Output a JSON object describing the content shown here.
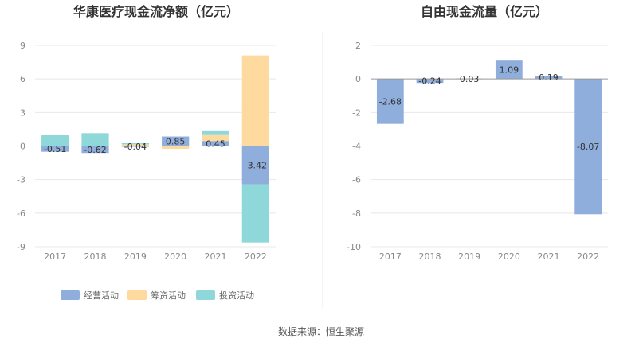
{
  "colors": {
    "operating": "#8FAEDB",
    "financing": "#FFDA9E",
    "investing": "#8ED8DA",
    "grid": "#E8E8E8",
    "axis": "#999999"
  },
  "source_label": "数据来源：恒生聚源",
  "chart_data": [
    {
      "type": "bar",
      "title": "华康医疗现金流净额（亿元）",
      "categories": [
        "2017",
        "2018",
        "2019",
        "2020",
        "2021",
        "2022"
      ],
      "ylim": [
        -9,
        9
      ],
      "yticks": [
        9,
        6,
        3,
        0,
        -3,
        -6,
        -9
      ],
      "stacked": true,
      "grid": true,
      "legend_position": "bottom",
      "series": [
        {
          "name": "经营活动",
          "color_key": "operating",
          "values": [
            -0.51,
            -0.62,
            -0.04,
            0.85,
            0.45,
            -3.42
          ]
        },
        {
          "name": "筹资活动",
          "color_key": "financing",
          "values": [
            0.0,
            0.0,
            0.15,
            -0.25,
            0.6,
            8.1
          ]
        },
        {
          "name": "投资活动",
          "color_key": "investing",
          "values": [
            1.0,
            1.15,
            0.1,
            0.0,
            0.35,
            -5.2
          ]
        }
      ],
      "data_labels": [
        "-0.51",
        "-0.62",
        "-0.04",
        "0.85",
        "0.45",
        "-3.42"
      ]
    },
    {
      "type": "bar",
      "title": "自由现金流量（亿元）",
      "categories": [
        "2017",
        "2018",
        "2019",
        "2020",
        "2021",
        "2022"
      ],
      "ylim": [
        -10,
        2
      ],
      "yticks": [
        2,
        0,
        -2,
        -4,
        -6,
        -8,
        -10
      ],
      "grid": true,
      "series": [
        {
          "color_key": "operating",
          "values": [
            -2.68,
            -0.24,
            0.03,
            1.09,
            0.19,
            -8.07
          ]
        }
      ],
      "data_labels": [
        "-2.68",
        "-0.24",
        "0.03",
        "1.09",
        "0.19",
        "-8.07"
      ]
    }
  ]
}
